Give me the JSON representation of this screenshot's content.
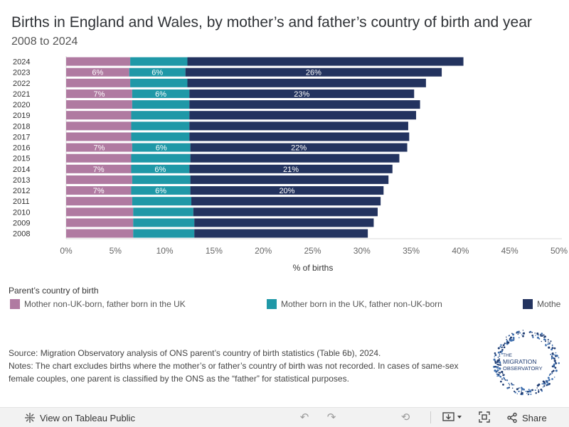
{
  "header": {
    "title": "Births in England and Wales, by mother’s and father’s country of birth and year",
    "subtitle": "2008 to 2024"
  },
  "chart_data": {
    "type": "bar",
    "orientation": "horizontal",
    "stacked": true,
    "title": "Births in England and Wales, by mother’s and father’s country of birth and year",
    "subtitle": "2008 to 2024",
    "xlabel": "% of births",
    "ylabel": "",
    "xlim": [
      0,
      50
    ],
    "xticks": [
      "0%",
      "5%",
      "10%",
      "15%",
      "20%",
      "25%",
      "30%",
      "35%",
      "40%",
      "45%",
      "50%"
    ],
    "categories": [
      "2024",
      "2023",
      "2022",
      "2021",
      "2020",
      "2019",
      "2018",
      "2017",
      "2016",
      "2015",
      "2014",
      "2013",
      "2012",
      "2011",
      "2010",
      "2009",
      "2008"
    ],
    "series": [
      {
        "name": "Mother non-UK-born, father born in the UK",
        "color": "#b07aa1",
        "values": [
          6.5,
          6.4,
          6.5,
          6.7,
          6.7,
          6.6,
          6.6,
          6.6,
          6.7,
          6.6,
          6.6,
          6.7,
          6.6,
          6.7,
          6.8,
          6.8,
          6.8
        ],
        "labels": [
          "",
          "6%",
          "",
          "7%",
          "",
          "",
          "",
          "",
          "7%",
          "",
          "7%",
          "",
          "7%",
          "",
          "",
          "",
          ""
        ]
      },
      {
        "name": "Mother born in the UK, father non-UK-born",
        "color": "#1f98a7",
        "values": [
          5.8,
          5.7,
          5.8,
          5.8,
          5.8,
          5.9,
          5.9,
          5.9,
          5.9,
          6.0,
          5.9,
          5.9,
          6.0,
          6.0,
          6.1,
          6.2,
          6.2
        ],
        "labels": [
          "",
          "6%",
          "",
          "6%",
          "",
          "",
          "",
          "",
          "6%",
          "",
          "6%",
          "",
          "6%",
          "",
          "",
          "",
          ""
        ]
      },
      {
        "name": "Mother and father both non-UK-born",
        "color": "#23335f",
        "values": [
          28.0,
          26.0,
          24.2,
          22.8,
          23.4,
          23.0,
          22.2,
          22.3,
          22.0,
          21.2,
          20.6,
          20.1,
          19.6,
          19.2,
          18.7,
          18.2,
          17.6
        ],
        "labels": [
          "",
          "26%",
          "",
          "23%",
          "",
          "",
          "",
          "",
          "22%",
          "",
          "21%",
          "",
          "20%",
          "",
          "",
          "",
          ""
        ]
      }
    ],
    "legend_title": "Parent’s country of birth",
    "legend_position": "bottom"
  },
  "legend": {
    "title": "Parent’s country of birth",
    "items": [
      {
        "label": "Mother non-UK-born, father born in the UK",
        "color": "#b07aa1"
      },
      {
        "label": "Mother born in the UK, father non-UK-born",
        "color": "#1f98a7"
      },
      {
        "label": "Mothe",
        "color": "#23335f"
      }
    ]
  },
  "notes": {
    "source": "Source: Migration Observatory analysis of ONS parent’s country of birth statistics (Table 6b), 2024.",
    "text": "Notes: The chart excludes births where the mother’s or father’s country of birth was not recorded. In cases of same-sex female couples, one parent is classified by the ONS as the “father” for statistical purposes."
  },
  "logo": {
    "line1": "THE",
    "line2": "MIGRATION",
    "line3": "OBSERVATORY"
  },
  "toolbar": {
    "view_label": "View on Tableau Public",
    "share_label": "Share",
    "icons": [
      "tableau-icon",
      "undo-icon",
      "redo-icon",
      "revert-icon",
      "download-icon",
      "fullscreen-icon",
      "share-icon"
    ]
  }
}
